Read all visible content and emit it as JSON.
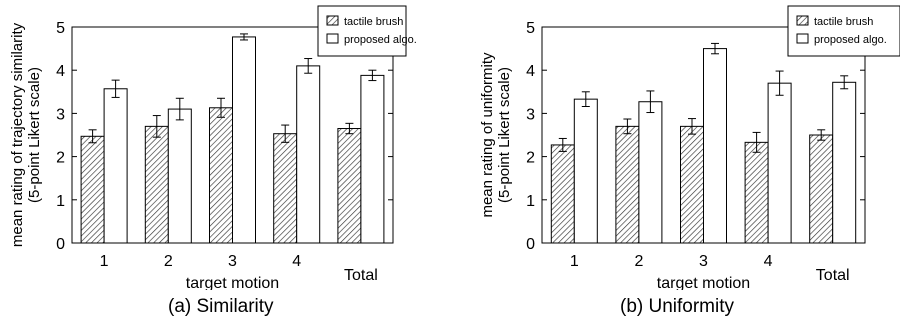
{
  "chart_data": [
    {
      "type": "bar",
      "caption": "(a) Similarity",
      "xlabel": "target motion",
      "ylabel_line1": "mean rating of trajectory similarity",
      "ylabel_line2": "(5-point Likert scale)",
      "ylim": [
        0,
        5
      ],
      "yticks": [
        "0",
        "1",
        "2",
        "3",
        "4",
        "5"
      ],
      "categories": [
        "1",
        "2",
        "3",
        "4",
        "Total"
      ],
      "legend_position": "top-right",
      "series": [
        {
          "name": "tactile brush",
          "pattern": "hatched",
          "values": [
            2.47,
            2.7,
            3.13,
            2.53,
            2.65
          ],
          "errors": [
            0.15,
            0.25,
            0.22,
            0.2,
            0.12
          ]
        },
        {
          "name": "proposed algo.",
          "pattern": "white",
          "values": [
            3.57,
            3.1,
            4.77,
            4.1,
            3.88
          ],
          "errors": [
            0.2,
            0.25,
            0.07,
            0.17,
            0.12
          ]
        }
      ]
    },
    {
      "type": "bar",
      "caption": "(b) Uniformity",
      "xlabel": "target motion",
      "ylabel_line1": "mean rating of uniformity",
      "ylabel_line2": "(5-point Likert scale)",
      "ylim": [
        0,
        5
      ],
      "yticks": [
        "0",
        "1",
        "2",
        "3",
        "4",
        "5"
      ],
      "categories": [
        "1",
        "2",
        "3",
        "4",
        "Total"
      ],
      "legend_position": "top-right",
      "series": [
        {
          "name": "tactile brush",
          "pattern": "hatched",
          "values": [
            2.27,
            2.7,
            2.7,
            2.33,
            2.5
          ],
          "errors": [
            0.15,
            0.17,
            0.18,
            0.23,
            0.12
          ]
        },
        {
          "name": "proposed algo.",
          "pattern": "white",
          "values": [
            3.33,
            3.27,
            4.5,
            3.7,
            3.72
          ],
          "errors": [
            0.17,
            0.25,
            0.12,
            0.28,
            0.15
          ]
        }
      ]
    }
  ]
}
